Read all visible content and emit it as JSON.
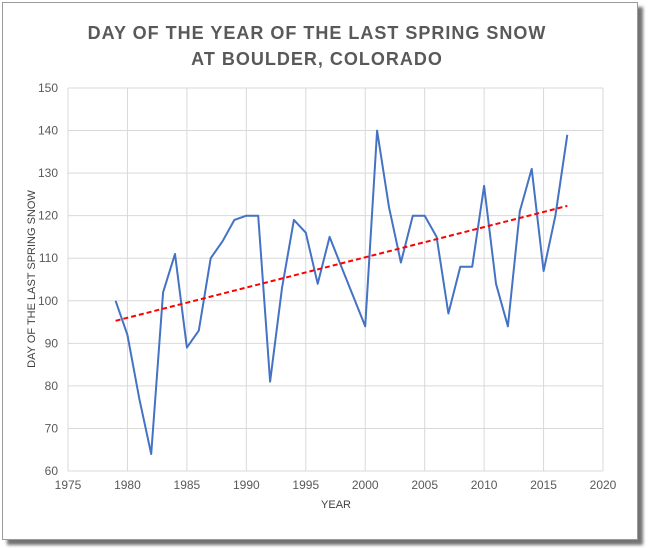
{
  "chart_data": {
    "type": "line",
    "title_lines": [
      "DAY OF THE YEAR OF THE LAST SPRING SNOW",
      "AT BOULDER, COLORADO"
    ],
    "xlabel": "YEAR",
    "ylabel": "DAY OF THE LAST SPRING SNOW",
    "xlim": [
      1975,
      2020
    ],
    "ylim": [
      60,
      150
    ],
    "x_ticks": [
      1975,
      1980,
      1985,
      1990,
      1995,
      2000,
      2005,
      2010,
      2015,
      2020
    ],
    "y_ticks": [
      60,
      70,
      80,
      90,
      100,
      110,
      120,
      130,
      140,
      150
    ],
    "grid": true,
    "series": [
      {
        "color": "#4472C4",
        "style": "solid",
        "x": [
          1979,
          1980,
          1981,
          1982,
          1983,
          1984,
          1985,
          1986,
          1987,
          1988,
          1989,
          1990,
          1991,
          1992,
          1993,
          1994,
          1995,
          1996,
          1997,
          1998,
          1999,
          2000,
          2001,
          2002,
          2003,
          2004,
          2005,
          2006,
          2007,
          2008,
          2009,
          2010,
          2011,
          2012,
          2013,
          2014,
          2015,
          2016,
          2017
        ],
        "y": [
          100,
          92,
          77,
          64,
          102,
          111,
          89,
          93,
          110,
          114,
          119,
          120,
          120,
          81,
          103,
          119,
          116,
          104,
          115,
          108,
          101,
          94,
          140,
          122,
          109,
          120,
          120,
          115,
          97,
          108,
          108,
          127,
          104,
          94,
          121,
          131,
          107,
          120,
          139
        ]
      },
      {
        "color": "#FF0000",
        "style": "dashed",
        "x": [
          1979,
          2017
        ],
        "y": [
          95.3,
          122.3
        ]
      }
    ]
  }
}
